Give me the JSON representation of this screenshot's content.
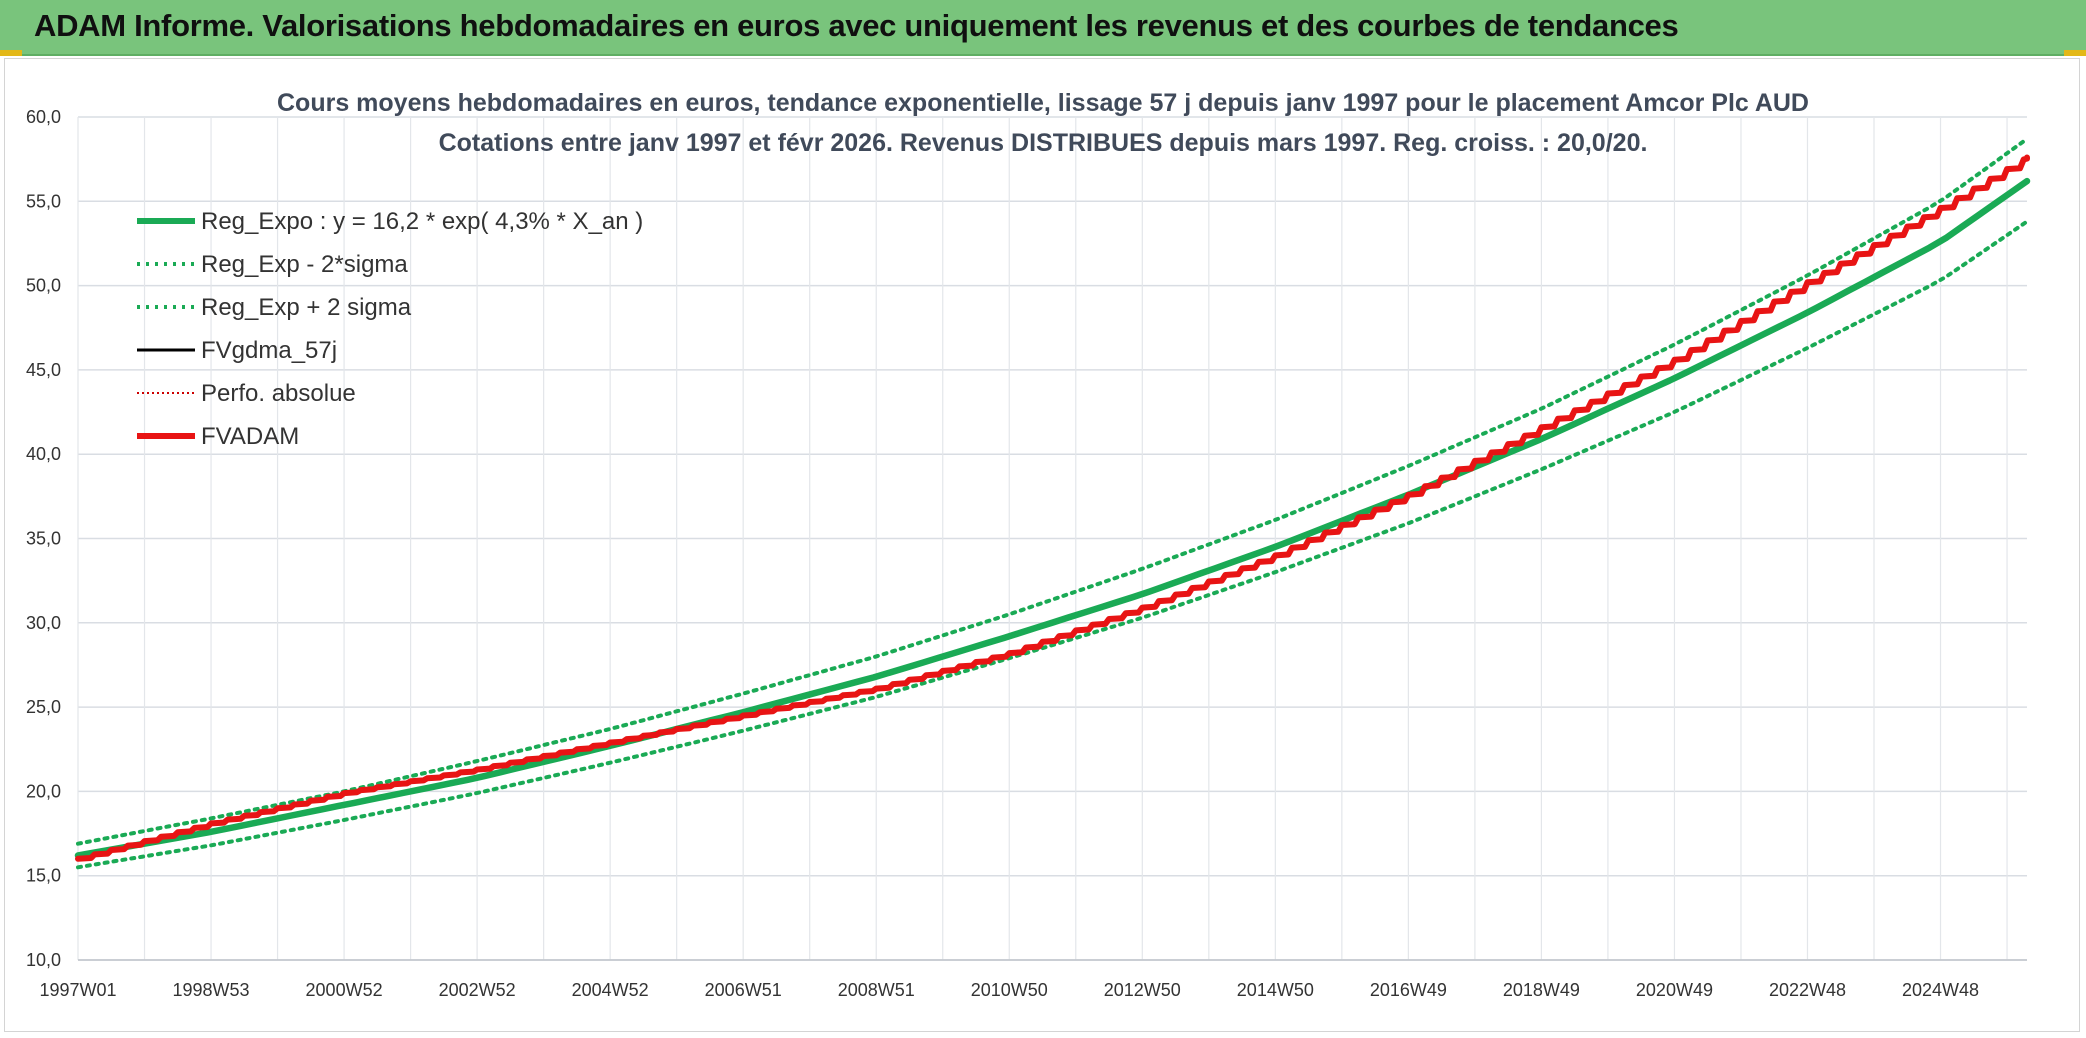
{
  "header": {
    "title": "ADAM Informe. Valorisations hebdomadaires en euros avec uniquement les revenus et des courbes de tendances",
    "bar_color": "#79c47c"
  },
  "chart_data": {
    "type": "line",
    "title": "Cours moyens hebdomadaires en euros, tendance exponentielle, lissage 57 j depuis janv 1997 pour le placement Amcor Plc AUD",
    "subtitle": "Cotations entre janv 1997 et févr 2026. Revenus DISTRIBUES depuis mars 1997. Reg. croiss. : 20,0/20.",
    "ylim": [
      10,
      60
    ],
    "yticks": [
      "10,0",
      "15,0",
      "20,0",
      "25,0",
      "30,0",
      "35,0",
      "40,0",
      "45,0",
      "50,0",
      "55,0",
      "60,0"
    ],
    "xlim": [
      1997.0,
      2026.3
    ],
    "xticks": [
      {
        "label": "1997W01",
        "x": 1997.0
      },
      {
        "label": "1998W53",
        "x": 1999.0
      },
      {
        "label": "2000W52",
        "x": 2001.0
      },
      {
        "label": "2002W52",
        "x": 2003.0
      },
      {
        "label": "2004W52",
        "x": 2005.0
      },
      {
        "label": "2006W51",
        "x": 2007.0
      },
      {
        "label": "2008W51",
        "x": 2009.0
      },
      {
        "label": "2010W50",
        "x": 2011.0
      },
      {
        "label": "2012W50",
        "x": 2013.0
      },
      {
        "label": "2014W50",
        "x": 2015.0
      },
      {
        "label": "2016W49",
        "x": 2017.0
      },
      {
        "label": "2018W49",
        "x": 2019.0
      },
      {
        "label": "2020W49",
        "x": 2021.0
      },
      {
        "label": "2022W48",
        "x": 2023.0
      },
      {
        "label": "2024W48",
        "x": 2025.0
      }
    ],
    "grid": true,
    "legend_position": "top-left",
    "series": [
      {
        "name": "Reg_Expo : y = 16,2 * exp( 4,3% *  X_an )",
        "color": "#1aaa55",
        "style": "solid-thick",
        "x": [
          1997,
          1999,
          2001,
          2003,
          2005,
          2007,
          2009,
          2011,
          2013,
          2015,
          2017,
          2019,
          2021,
          2023,
          2025,
          2026.3
        ],
        "y": [
          16.2,
          17.6,
          19.2,
          20.8,
          22.7,
          24.7,
          26.8,
          29.2,
          31.7,
          34.5,
          37.6,
          40.9,
          44.5,
          48.4,
          52.6,
          56.2
        ]
      },
      {
        "name": "Reg_Exp - 2*sigma",
        "color": "#1aaa55",
        "style": "dotted",
        "x": [
          1997,
          1999,
          2001,
          2003,
          2005,
          2007,
          2009,
          2011,
          2013,
          2015,
          2017,
          2019,
          2021,
          2023,
          2025,
          2026.3
        ],
        "y": [
          15.5,
          16.8,
          18.3,
          19.9,
          21.7,
          23.6,
          25.6,
          27.9,
          30.3,
          33.0,
          35.9,
          39.1,
          42.5,
          46.3,
          50.3,
          53.8
        ]
      },
      {
        "name": "Reg_Exp + 2 sigma",
        "color": "#1aaa55",
        "style": "dotted",
        "x": [
          1997,
          1999,
          2001,
          2003,
          2005,
          2007,
          2009,
          2011,
          2013,
          2015,
          2017,
          2019,
          2021,
          2023,
          2025,
          2026.3
        ],
        "y": [
          16.9,
          18.4,
          20.0,
          21.8,
          23.7,
          25.8,
          28.0,
          30.5,
          33.2,
          36.1,
          39.3,
          42.7,
          46.5,
          50.6,
          55.0,
          58.7
        ]
      },
      {
        "name": "FVgdma_57j",
        "color": "#000000",
        "style": "solid",
        "x": [
          1997,
          1999,
          2001,
          2003,
          2005,
          2007,
          2009,
          2011,
          2013,
          2015,
          2017,
          2019,
          2021,
          2023,
          2025,
          2026.3
        ],
        "y": [
          16.0,
          18.1,
          19.9,
          21.3,
          22.9,
          24.5,
          26.1,
          28.2,
          30.9,
          34.0,
          37.6,
          41.6,
          45.6,
          50.2,
          54.6,
          57.6
        ]
      },
      {
        "name": "Perfo. absolue",
        "color": "#cc0000",
        "style": "dotted-thin",
        "x": [
          1997,
          1999,
          2001,
          2003,
          2005,
          2007,
          2009,
          2011,
          2013,
          2015,
          2017,
          2019,
          2021,
          2023,
          2025,
          2026.3
        ],
        "y": [
          16.0,
          18.1,
          19.9,
          21.3,
          22.9,
          24.5,
          26.1,
          28.2,
          30.9,
          34.0,
          37.6,
          41.6,
          45.6,
          50.2,
          54.6,
          57.6
        ]
      },
      {
        "name": "FVADAM",
        "color": "#e81414",
        "style": "solid-thick-stepped",
        "x": [
          1997,
          1999,
          2001,
          2003,
          2005,
          2007,
          2009,
          2011,
          2013,
          2015,
          2017,
          2019,
          2021,
          2023,
          2025,
          2026.3
        ],
        "y": [
          16.0,
          18.1,
          19.9,
          21.3,
          22.9,
          24.5,
          26.1,
          28.2,
          30.9,
          34.0,
          37.6,
          41.6,
          45.6,
          50.2,
          54.6,
          57.6
        ]
      }
    ]
  }
}
